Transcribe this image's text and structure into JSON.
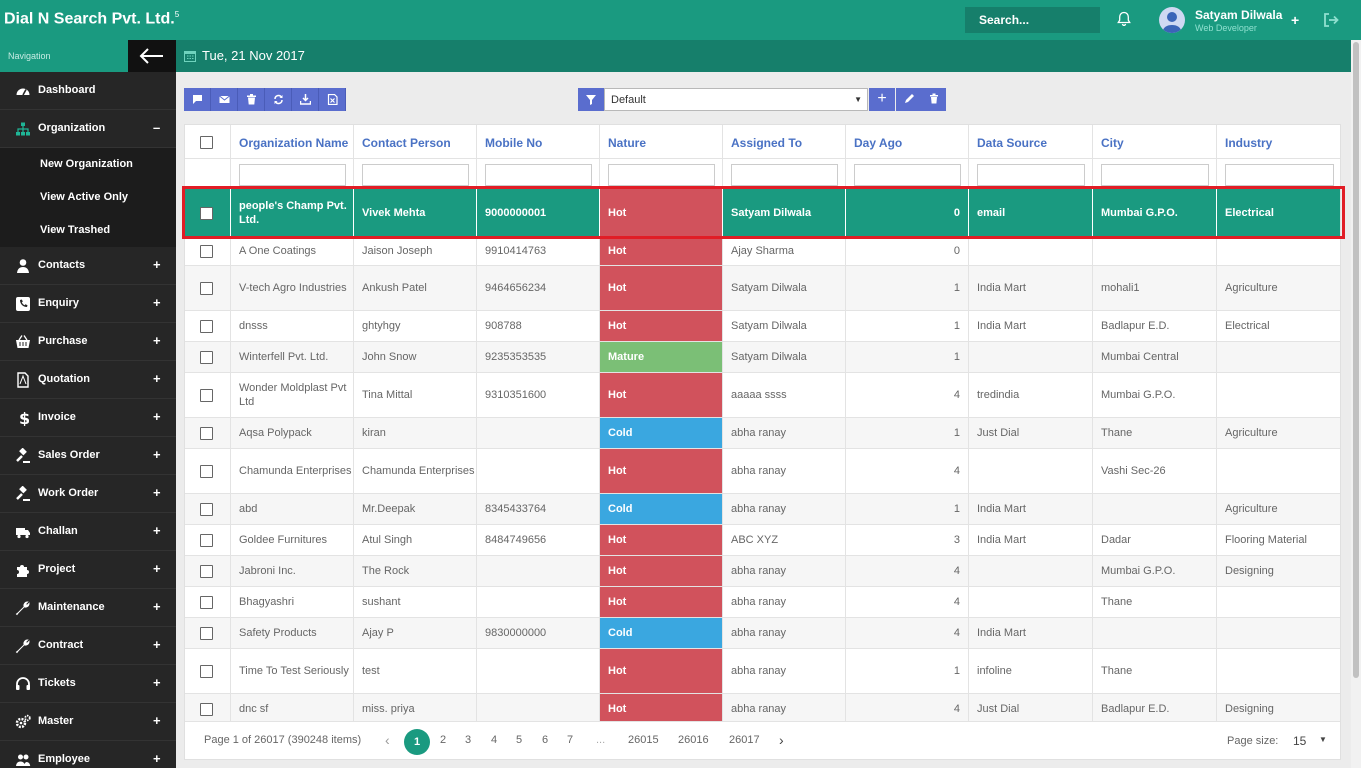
{
  "app": {
    "title": "Dial N Search Pvt. Ltd.",
    "title_sup": "5",
    "search_placeholder": "Search...",
    "user": {
      "name": "Satyam Dilwala",
      "role": "Web Developer"
    },
    "date": "Tue, 21 Nov 2017"
  },
  "sidebar": {
    "header": "Navigation",
    "items": [
      {
        "label": "Dashboard",
        "icon": "dashboard-icon",
        "toggle": ""
      },
      {
        "label": "Organization",
        "icon": "sitemap-icon",
        "toggle": "–"
      },
      {
        "label": "Contacts",
        "icon": "user-icon",
        "toggle": "+"
      },
      {
        "label": "Enquiry",
        "icon": "phone-icon",
        "toggle": "+"
      },
      {
        "label": "Purchase",
        "icon": "basket-icon",
        "toggle": "+"
      },
      {
        "label": "Quotation",
        "icon": "document-icon",
        "toggle": "+"
      },
      {
        "label": "Invoice",
        "icon": "dollar-icon",
        "toggle": "+"
      },
      {
        "label": "Sales Order",
        "icon": "gavel-icon",
        "toggle": "+"
      },
      {
        "label": "Work Order",
        "icon": "gavel-icon",
        "toggle": "+"
      },
      {
        "label": "Challan",
        "icon": "truck-icon",
        "toggle": "+"
      },
      {
        "label": "Project",
        "icon": "puzzle-icon",
        "toggle": "+"
      },
      {
        "label": "Maintenance",
        "icon": "wrench-icon",
        "toggle": "+"
      },
      {
        "label": "Contract",
        "icon": "wrench-icon",
        "toggle": "+"
      },
      {
        "label": "Tickets",
        "icon": "headset-icon",
        "toggle": "+"
      },
      {
        "label": "Master",
        "icon": "cogs-icon",
        "toggle": "+"
      },
      {
        "label": "Employee",
        "icon": "users-icon",
        "toggle": "+"
      }
    ],
    "submenu": [
      "New Organization",
      "View Active Only",
      "View Trashed"
    ]
  },
  "toolbar": {
    "actions": [
      "comment-icon",
      "mail-icon",
      "trash-icon",
      "refresh-icon",
      "download-icon",
      "excel-icon"
    ],
    "view_select": "Default"
  },
  "grid": {
    "columns": [
      "Organization Name",
      "Contact Person",
      "Mobile No",
      "Nature",
      "Assigned To",
      "Day Ago",
      "Data Source",
      "City",
      "Industry"
    ],
    "rows": [
      {
        "org": "people's Champ Pvt. Ltd.",
        "contact": "Vivek Mehta",
        "mobile": "9000000001",
        "nature": "Hot",
        "assigned": "Satyam Dilwala",
        "days": "0",
        "source": "email",
        "city": "Mumbai G.P.O.",
        "industry": "Electrical"
      },
      {
        "org": "A One Coatings",
        "contact": "Jaison Joseph",
        "mobile": "9910414763",
        "nature": "Hot",
        "assigned": "Ajay Sharma",
        "days": "0",
        "source": "",
        "city": "",
        "industry": ""
      },
      {
        "org": "V-tech Agro Industries",
        "contact": "Ankush Patel",
        "mobile": "9464656234",
        "nature": "Hot",
        "assigned": "Satyam Dilwala",
        "days": "1",
        "source": "India Mart",
        "city": "mohali1",
        "industry": "Agriculture"
      },
      {
        "org": "dnsss",
        "contact": "ghtyhgy",
        "mobile": "908788",
        "nature": "Hot",
        "assigned": "Satyam Dilwala",
        "days": "1",
        "source": "India Mart",
        "city": "Badlapur E.D.",
        "industry": "Electrical"
      },
      {
        "org": "Winterfell Pvt. Ltd.",
        "contact": "John Snow",
        "mobile": "9235353535",
        "nature": "Mature",
        "assigned": "Satyam Dilwala",
        "days": "1",
        "source": "",
        "city": "Mumbai Central",
        "industry": ""
      },
      {
        "org": "Wonder Moldplast Pvt Ltd",
        "contact": "Tina Mittal",
        "mobile": "9310351600",
        "nature": "Hot",
        "assigned": "aaaaa ssss",
        "days": "4",
        "source": "tredindia",
        "city": "Mumbai G.P.O.",
        "industry": ""
      },
      {
        "org": "Aqsa Polypack",
        "contact": "kiran",
        "mobile": "",
        "nature": "Cold",
        "assigned": "abha ranay",
        "days": "1",
        "source": "Just Dial",
        "city": "Thane",
        "industry": "Agriculture"
      },
      {
        "org": "Chamunda Enterprises",
        "contact": "Chamunda Enterprises",
        "mobile": "",
        "nature": "Hot",
        "assigned": "abha ranay",
        "days": "4",
        "source": "",
        "city": "Vashi Sec-26",
        "industry": ""
      },
      {
        "org": "abd",
        "contact": "Mr.Deepak",
        "mobile": "8345433764",
        "nature": "Cold",
        "assigned": "abha ranay",
        "days": "1",
        "source": "India Mart",
        "city": "",
        "industry": "Agriculture"
      },
      {
        "org": "Goldee Furnitures",
        "contact": "Atul Singh",
        "mobile": "8484749656",
        "nature": "Hot",
        "assigned": "ABC XYZ",
        "days": "3",
        "source": "India Mart",
        "city": "Dadar",
        "industry": "Flooring Material"
      },
      {
        "org": "Jabroni Inc.",
        "contact": "The Rock",
        "mobile": "",
        "nature": "Hot",
        "assigned": "abha ranay",
        "days": "4",
        "source": "",
        "city": "Mumbai G.P.O.",
        "industry": "Designing"
      },
      {
        "org": "Bhagyashri",
        "contact": "sushant",
        "mobile": "",
        "nature": "Hot",
        "assigned": "abha ranay",
        "days": "4",
        "source": "",
        "city": "Thane",
        "industry": ""
      },
      {
        "org": "Safety Products",
        "contact": "Ajay P",
        "mobile": "9830000000",
        "nature": "Cold",
        "assigned": "abha ranay",
        "days": "4",
        "source": "India Mart",
        "city": "",
        "industry": ""
      },
      {
        "org": "Time To Test Seriously",
        "contact": "test",
        "mobile": "",
        "nature": "Hot",
        "assigned": "abha ranay",
        "days": "1",
        "source": "infoline",
        "city": "Thane",
        "industry": ""
      },
      {
        "org": "dnc sf",
        "contact": "miss. priya",
        "mobile": "",
        "nature": "Hot",
        "assigned": "abha ranay",
        "days": "4",
        "source": "Just Dial",
        "city": "Badlapur E.D.",
        "industry": "Designing"
      }
    ],
    "nature_colors": {
      "Hot": "#d1525c",
      "Cold": "#3aa7e0",
      "Mature": "#7bbf76"
    },
    "selected_color": "#1a9a80"
  },
  "pager": {
    "info": "Page 1 of 26017 (390248 items)",
    "pages": [
      "1",
      "2",
      "3",
      "4",
      "5",
      "6",
      "7",
      "...",
      "26015",
      "26016",
      "26017"
    ],
    "size_label": "Page size:",
    "size": "15"
  }
}
